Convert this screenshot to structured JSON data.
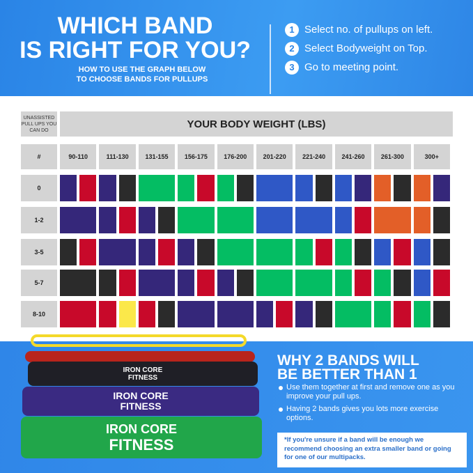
{
  "header": {
    "title_line1": "WHICH BAND",
    "title_line2": "IS RIGHT FOR YOU?",
    "subtitle_line1": "HOW TO USE THE GRAPH BELOW",
    "subtitle_line2": "TO CHOOSE BANDS FOR PULLUPS",
    "steps": [
      {
        "num": "1",
        "text": "Select no. of pullups on left."
      },
      {
        "num": "2",
        "text": "Select Bodyweight on Top."
      },
      {
        "num": "3",
        "text": "Go to meeting point."
      }
    ]
  },
  "table": {
    "corner_label": "UNASSISTED PULL UPS YOU CAN DO",
    "weight_header": "YOUR BODY WEIGHT (LBS)",
    "row_header": "#",
    "columns": [
      "90-110",
      "111-130",
      "131-155",
      "156-175",
      "176-200",
      "201-220",
      "221-240",
      "241-260",
      "261-300",
      "300+"
    ],
    "colors": {
      "P": "#35277a",
      "R": "#c8092a",
      "K": "#2b2b2b",
      "G": "#04bd63",
      "B": "#2f58c6",
      "O": "#e35f28",
      "Y": "#fbe84a"
    },
    "rows": [
      {
        "label": "0",
        "cells": [
          [
            "P",
            "R"
          ],
          [
            "P",
            "K"
          ],
          [
            "G"
          ],
          [
            "G",
            "R"
          ],
          [
            "G",
            "K"
          ],
          [
            "B"
          ],
          [
            "B",
            "K"
          ],
          [
            "B",
            "P"
          ],
          [
            "O",
            "K"
          ],
          [
            "O",
            "P"
          ]
        ]
      },
      {
        "label": "1-2",
        "cells": [
          [
            "P"
          ],
          [
            "P",
            "R"
          ],
          [
            "P",
            "K"
          ],
          [
            "G"
          ],
          [
            "G"
          ],
          [
            "B"
          ],
          [
            "B"
          ],
          [
            "B",
            "R"
          ],
          [
            "O"
          ],
          [
            "O",
            "K"
          ]
        ]
      },
      {
        "label": "3-5",
        "cells": [
          [
            "K",
            "R"
          ],
          [
            "P"
          ],
          [
            "P",
            "R"
          ],
          [
            "P",
            "K"
          ],
          [
            "G"
          ],
          [
            "G"
          ],
          [
            "G",
            "R"
          ],
          [
            "G",
            "K"
          ],
          [
            "B",
            "R"
          ],
          [
            "B",
            "K"
          ]
        ]
      },
      {
        "label": "5-7",
        "cells": [
          [
            "K"
          ],
          [
            "K",
            "R"
          ],
          [
            "P"
          ],
          [
            "P",
            "R"
          ],
          [
            "P",
            "K"
          ],
          [
            "G"
          ],
          [
            "G"
          ],
          [
            "G",
            "R"
          ],
          [
            "G",
            "K"
          ],
          [
            "B",
            "R"
          ]
        ]
      },
      {
        "label": "8-10",
        "cells": [
          [
            "R"
          ],
          [
            "R",
            "Y"
          ],
          [
            "R",
            "K"
          ],
          [
            "P"
          ],
          [
            "P"
          ],
          [
            "P",
            "R"
          ],
          [
            "P",
            "K"
          ],
          [
            "G"
          ],
          [
            "G",
            "R"
          ],
          [
            "G",
            "K"
          ]
        ]
      }
    ]
  },
  "bottom": {
    "heading_line1": "WHY 2 BANDS WILL",
    "heading_line2": "BE BETTER THAN 1",
    "bullets": [
      "Use them together at first and remove one as you improve your pull ups.",
      "Having 2 bands gives you lots more exercise options."
    ],
    "note": "*If you're unsure if a band will be enough we recommend choosing an extra smaller band or going for one of our multipacks.",
    "logo_line1": "IRON CORE",
    "logo_line2": "FITNESS"
  }
}
